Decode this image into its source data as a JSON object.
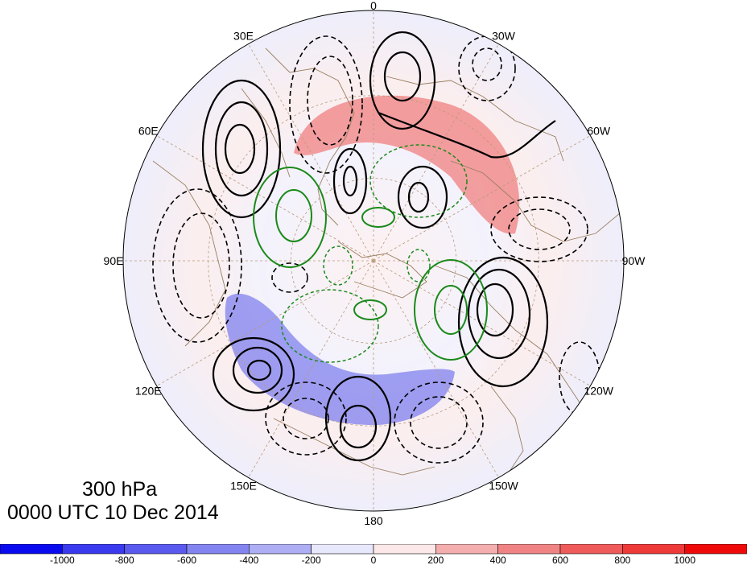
{
  "map": {
    "lon_labels": [
      {
        "text": "0",
        "lon": 0
      },
      {
        "text": "30W",
        "lon": -30
      },
      {
        "text": "60W",
        "lon": -60
      },
      {
        "text": "90W",
        "lon": -90
      },
      {
        "text": "120W",
        "lon": -120
      },
      {
        "text": "150W",
        "lon": -150
      },
      {
        "text": "180",
        "lon": 180
      },
      {
        "text": "150E",
        "lon": 150
      },
      {
        "text": "120E",
        "lon": 120
      },
      {
        "text": "90E",
        "lon": 90
      },
      {
        "text": "60E",
        "lon": 60
      },
      {
        "text": "30E",
        "lon": 30
      }
    ],
    "colors": {
      "positive_contour": "#000000",
      "negative_contour": "#000000",
      "secondary_contour": "#1a8a1a",
      "coastline": "#9a7f60",
      "graticule": "#b89a7a",
      "shade_positive": "#f08080",
      "shade_negative": "#8080ee"
    }
  },
  "titles": {
    "level": "300 hPa",
    "time": "0000 UTC 10 Dec 2014"
  },
  "colorbar": {
    "labels": [
      "-1000",
      "-800",
      "-600",
      "-400",
      "-200",
      "0",
      "200",
      "400",
      "600",
      "800",
      "1000"
    ],
    "colors": [
      "#0a0aef",
      "#3a3aef",
      "#5a5aef",
      "#8484f0",
      "#aeaef4",
      "#e8e8fc",
      "#fce8e8",
      "#f4aeae",
      "#f08484",
      "#ef5a5a",
      "#ef3a3a",
      "#ef0a0a"
    ]
  }
}
